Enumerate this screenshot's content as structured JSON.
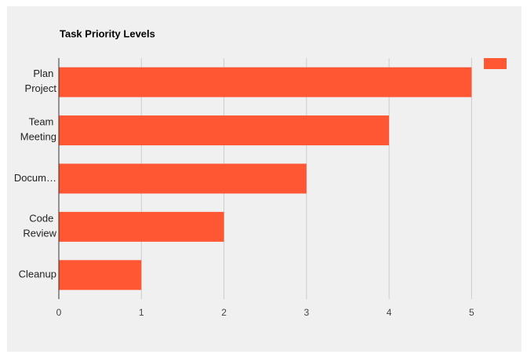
{
  "chart_data": {
    "type": "bar",
    "orientation": "horizontal",
    "title": "Task Priority Levels",
    "categories": [
      "Plan Project",
      "Team Meeting",
      "Docum…",
      "Code Review",
      "Cleanup"
    ],
    "series": [
      {
        "color": "#ff5733",
        "values": [
          5,
          4,
          3,
          2,
          1
        ]
      }
    ],
    "xlim": [
      0,
      5.5
    ],
    "xticks": [
      0,
      1,
      2,
      3,
      4,
      5
    ],
    "grid": true,
    "legend": "top-right"
  }
}
